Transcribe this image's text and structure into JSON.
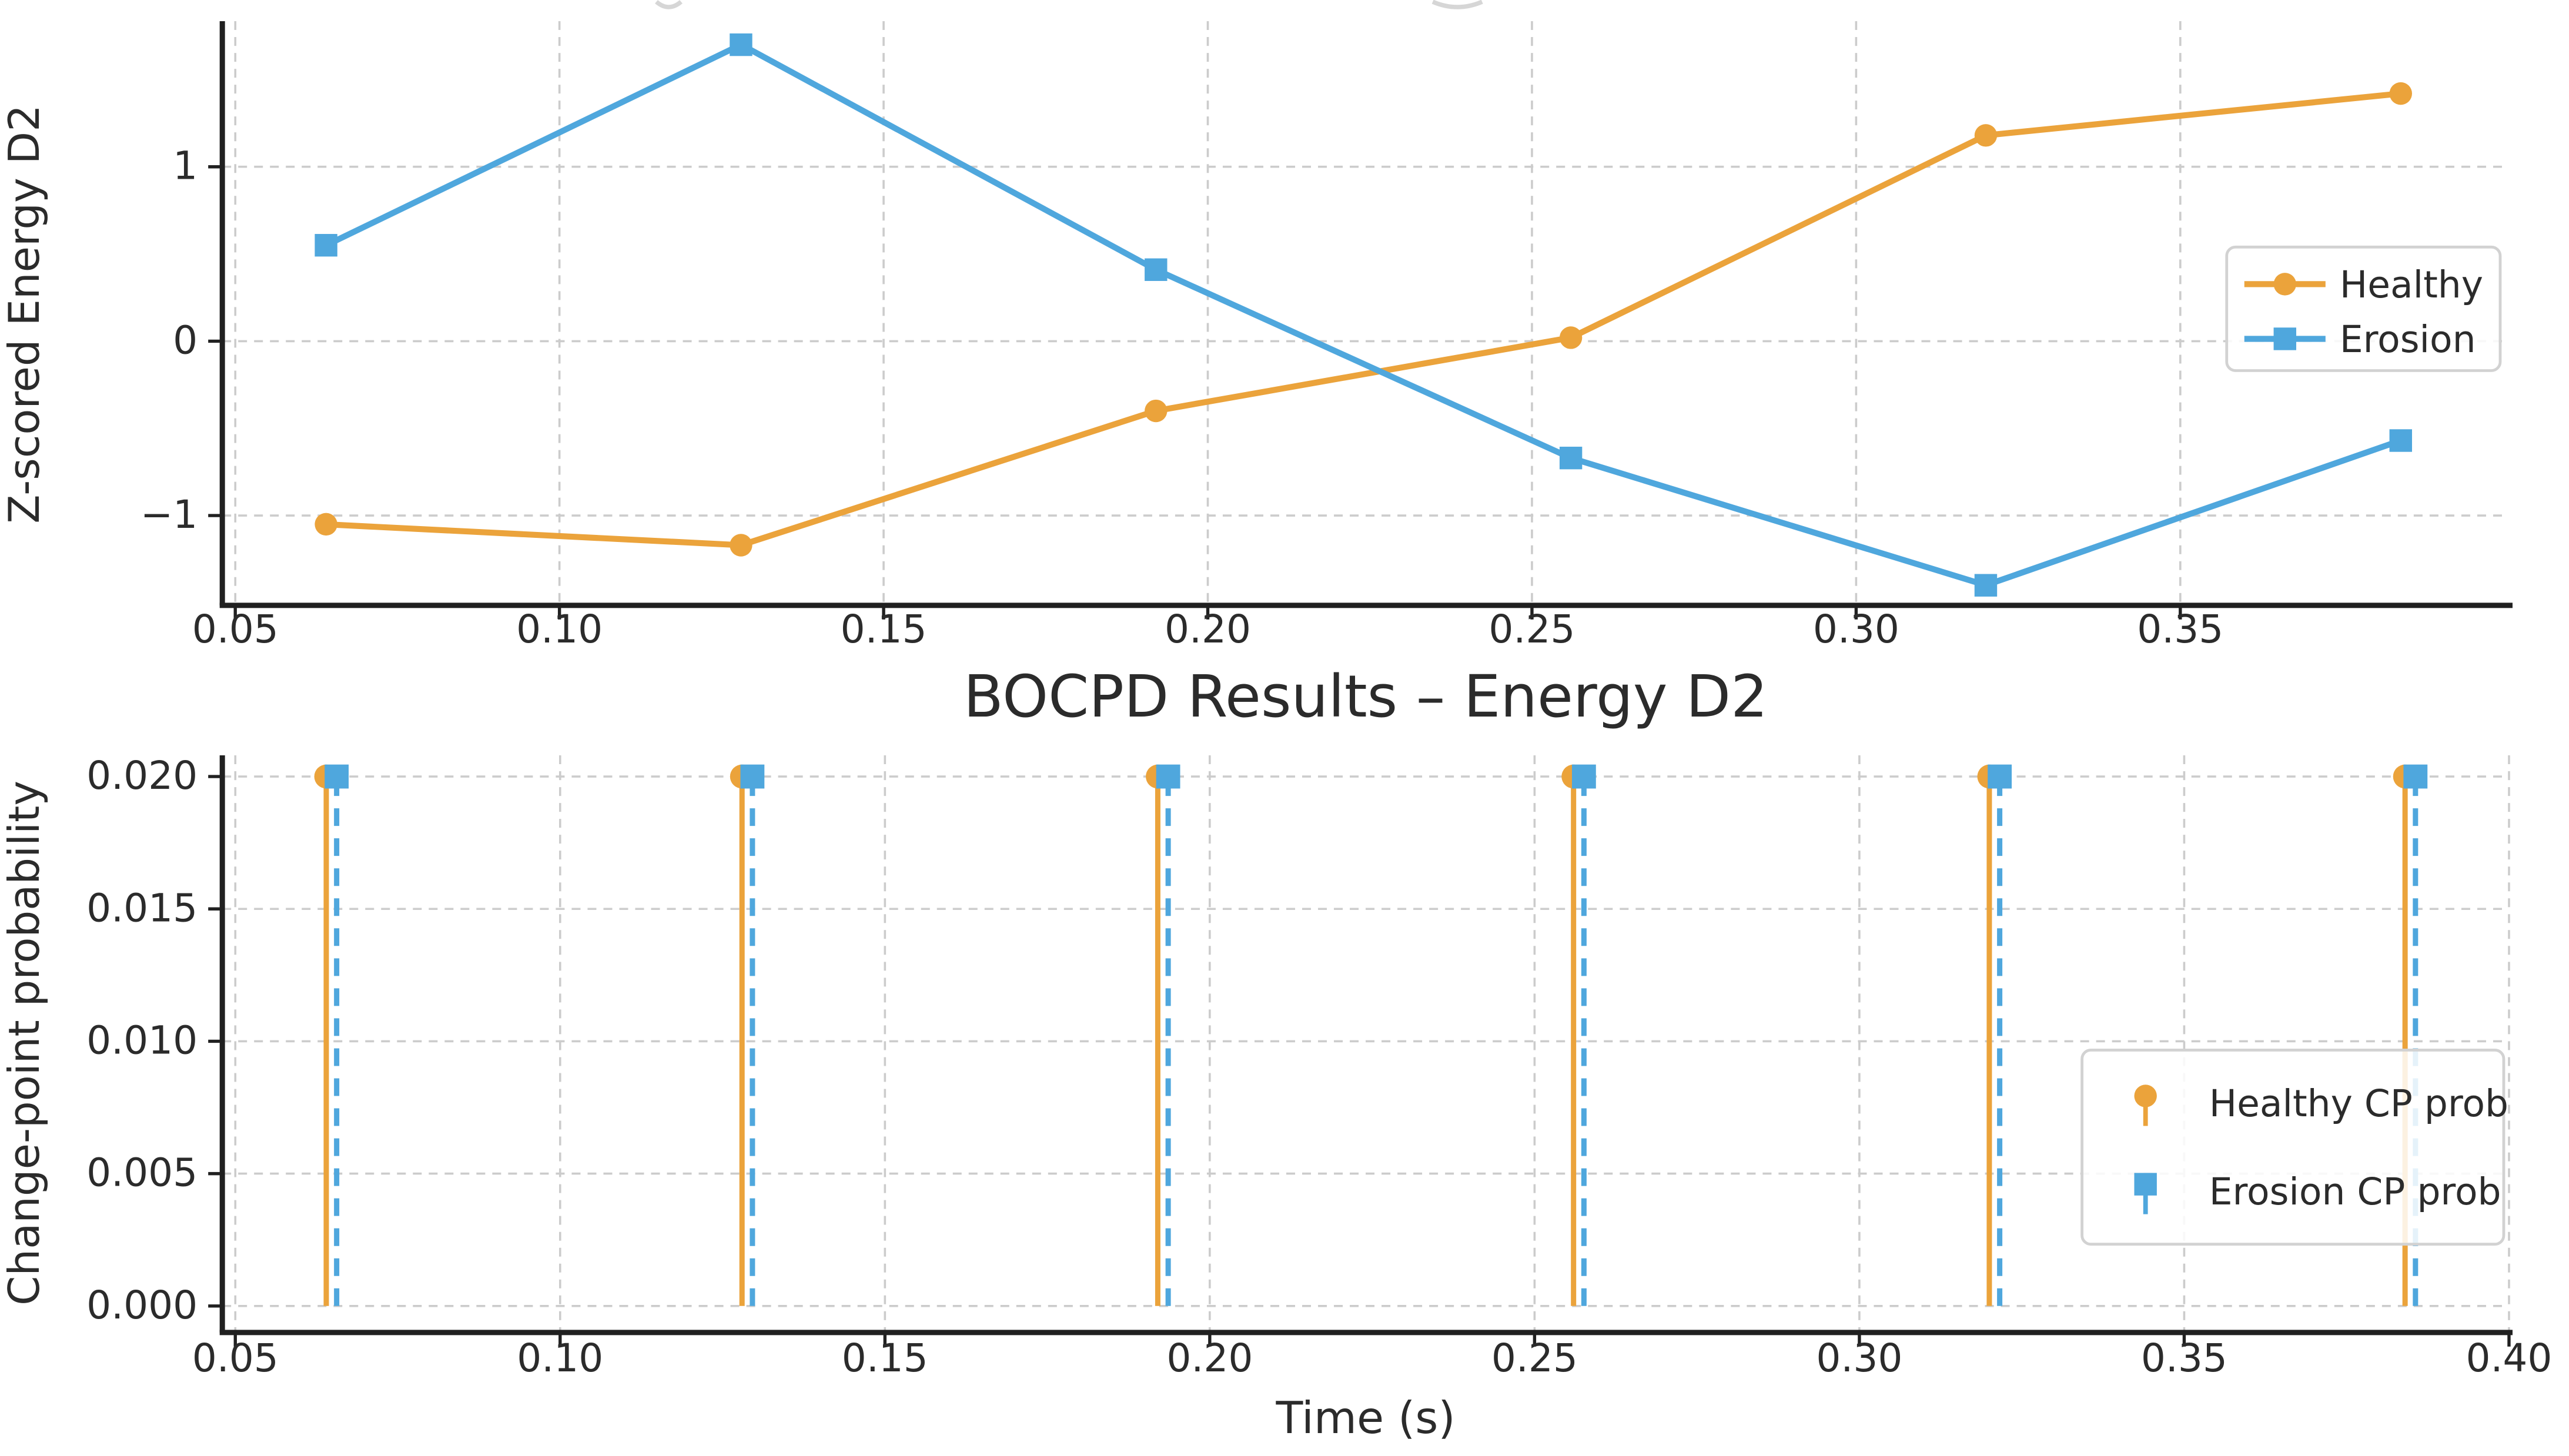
{
  "figure": {
    "background": "#ffffff",
    "colors": {
      "healthy": "#EBA33B",
      "erosion": "#4FA7DD",
      "grid": "#cccccc",
      "spine": "#202020",
      "text": "#2b2b2b",
      "legend_border": "#d2d2d2",
      "legend_fill": "#ffffff"
    }
  },
  "chart_data": [
    {
      "type": "line",
      "title": "",
      "xlabel": "",
      "ylabel": "Z-scored Energy D2",
      "x": [
        0.064,
        0.128,
        0.192,
        0.256,
        0.32,
        0.384
      ],
      "series": [
        {
          "name": "Healthy",
          "marker": "circle",
          "color_key": "healthy",
          "line": "solid",
          "values": [
            -1.05,
            -1.17,
            -0.4,
            0.02,
            1.18,
            1.42
          ]
        },
        {
          "name": "Erosion",
          "marker": "square",
          "color_key": "erosion",
          "line": "solid",
          "values": [
            0.55,
            1.7,
            0.41,
            -0.67,
            -1.4,
            -0.57
          ]
        }
      ],
      "xlim": [
        0.048,
        0.4007
      ],
      "ylim": [
        -1.515,
        1.835
      ],
      "xticks": {
        "values": [
          0.05,
          0.1,
          0.15,
          0.2,
          0.25,
          0.3,
          0.35
        ],
        "labels": [
          "0.05",
          "0.10",
          "0.15",
          "0.20",
          "0.25",
          "0.30",
          "0.35"
        ]
      },
      "yticks": {
        "values": [
          -1,
          0,
          1
        ],
        "labels": [
          "−1",
          "0",
          "1"
        ]
      },
      "grid": true,
      "legend": {
        "position": "center-right",
        "entries": [
          "Healthy",
          "Erosion"
        ]
      }
    },
    {
      "type": "stem",
      "title": "BOCPD Results – Energy D2",
      "xlabel": "Time (s)",
      "ylabel": "Change-point probability",
      "x": [
        0.064,
        0.128,
        0.192,
        0.256,
        0.32,
        0.384
      ],
      "series": [
        {
          "name": "Healthy CP prob",
          "marker": "circle",
          "color_key": "healthy",
          "stem_style": "solid",
          "x_offset": 0.0,
          "values": [
            0.02,
            0.02,
            0.02,
            0.02,
            0.02,
            0.02
          ]
        },
        {
          "name": "Erosion CP prob",
          "marker": "square",
          "color_key": "erosion",
          "stem_style": "dashed",
          "x_offset": 0.0016,
          "values": [
            0.02,
            0.02,
            0.02,
            0.02,
            0.02,
            0.02
          ]
        }
      ],
      "baseline": 0.0,
      "xlim": [
        0.048,
        0.4
      ],
      "ylim": [
        -0.001,
        0.0208
      ],
      "xticks": {
        "values": [
          0.05,
          0.1,
          0.15,
          0.2,
          0.25,
          0.3,
          0.35,
          0.4
        ],
        "labels": [
          "0.05",
          "0.10",
          "0.15",
          "0.20",
          "0.25",
          "0.30",
          "0.35",
          "0.40"
        ]
      },
      "yticks": {
        "values": [
          0.0,
          0.005,
          0.01,
          0.015,
          0.02
        ],
        "labels": [
          "0.000",
          "0.005",
          "0.010",
          "0.015",
          "0.020"
        ]
      },
      "grid": true,
      "legend": {
        "position": "center-right",
        "entries": [
          "Healthy CP prob",
          "Erosion CP prob"
        ]
      }
    }
  ]
}
